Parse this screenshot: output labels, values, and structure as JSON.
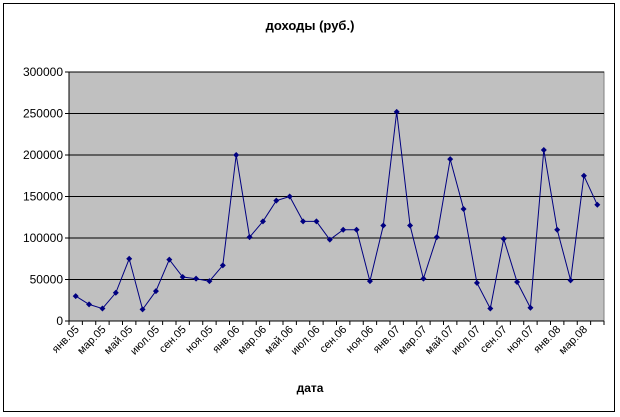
{
  "chart_data": {
    "type": "line",
    "title": "доходы (руб.)",
    "xlabel": "дата",
    "ylabel": "",
    "ylim": [
      0,
      300000
    ],
    "yticks": [
      "0",
      "50000",
      "100000",
      "150000",
      "200000",
      "250000",
      "300000"
    ],
    "tick_labels": [
      "янв.05",
      "мар.05",
      "май.05",
      "июл.05",
      "сен.05",
      "ноя.05",
      "янв.06",
      "мар.06",
      "май.06",
      "июл.06",
      "сен.06",
      "ноя.06",
      "янв.07",
      "мар.07",
      "май.07",
      "июл.07",
      "сен.07",
      "ноя.07",
      "янв.08",
      "мар.08"
    ],
    "x": [
      "янв.05",
      "фев.05",
      "мар.05",
      "апр.05",
      "май.05",
      "июн.05",
      "июл.05",
      "авг.05",
      "сен.05",
      "окт.05",
      "ноя.05",
      "дек.05",
      "янв.06",
      "фев.06",
      "мар.06",
      "апр.06",
      "май.06",
      "июн.06",
      "июл.06",
      "авг.06",
      "сен.06",
      "окт.06",
      "ноя.06",
      "дек.06",
      "янв.07",
      "фев.07",
      "мар.07",
      "апр.07",
      "май.07",
      "июн.07",
      "июл.07",
      "авг.07",
      "сен.07",
      "окт.07",
      "ноя.07",
      "дек.07",
      "янв.08",
      "фев.08",
      "мар.08",
      "апр.08"
    ],
    "series": [
      {
        "values": [
          30000,
          20000,
          15000,
          34000,
          75000,
          14000,
          36000,
          74000,
          53000,
          51000,
          48000,
          67000,
          200000,
          101000,
          120000,
          145000,
          150000,
          120000,
          120000,
          98000,
          110000,
          110000,
          48000,
          115000,
          252000,
          115000,
          51000,
          101000,
          195000,
          135000,
          46000,
          15000,
          99000,
          47000,
          16000,
          206000,
          110000,
          49000,
          175000,
          140000
        ],
        "color": "#000080"
      }
    ],
    "plot_background": "#c0c0c0",
    "grid": true,
    "legend": "none"
  }
}
